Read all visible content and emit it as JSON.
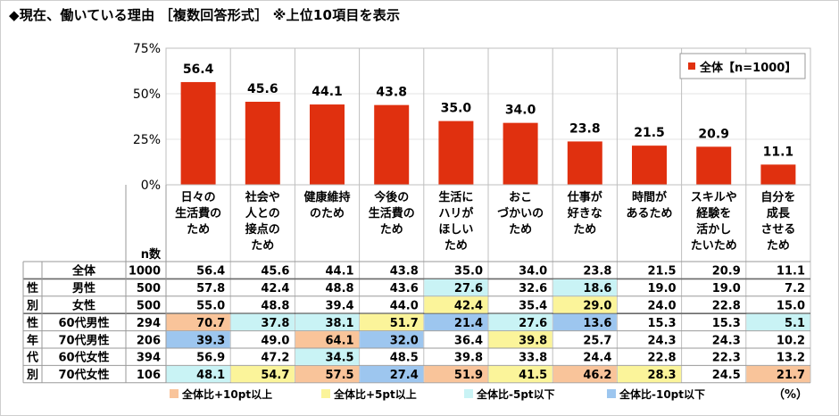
{
  "title": "◆現在、働いている理由 ［複数回答形式］ ※上位10項目を表示",
  "chart_data": {
    "type": "bar",
    "categories": [
      "日々の\n生活費の\nため",
      "社会や\n人との\n接点の\nため",
      "健康維持\nのため",
      "今後の\n生活費の\nため",
      "生活に\nハリが\nほしい\nため",
      "おこ\nづかいの\nため",
      "仕事が\n好きな\nため",
      "時間が\nあるため",
      "スキルや\n経験を\n活かし\nたいため",
      "自分を\n成長\nさせる\nため"
    ],
    "series": [
      {
        "name": "全体【n=1000】",
        "values": [
          56.4,
          45.6,
          44.1,
          43.8,
          35.0,
          34.0,
          23.8,
          21.5,
          20.9,
          11.1
        ]
      }
    ],
    "yticks": [
      "0%",
      "25%",
      "50%",
      "75%"
    ],
    "ylim": [
      0,
      75
    ],
    "bar_color": "#e0300f",
    "legend_position": "top-right"
  },
  "table": {
    "n_header": "n数",
    "unit": "（%）",
    "rows": [
      {
        "group": "",
        "label": "全体",
        "n": "1000",
        "values": [
          "56.4",
          "45.6",
          "44.1",
          "43.8",
          "35.0",
          "34.0",
          "23.8",
          "21.5",
          "20.9",
          "11.1"
        ],
        "hl": [
          "",
          "",
          "",
          "",
          "",
          "",
          "",
          "",
          "",
          ""
        ]
      },
      {
        "group": "性",
        "label": "男性",
        "n": "500",
        "values": [
          "57.8",
          "42.4",
          "48.8",
          "43.6",
          "27.6",
          "32.6",
          "18.6",
          "19.0",
          "19.0",
          "7.2"
        ],
        "hl": [
          "",
          "",
          "",
          "",
          "c",
          "",
          "c",
          "",
          "",
          ""
        ]
      },
      {
        "group": "別",
        "label": "女性",
        "n": "500",
        "values": [
          "55.0",
          "48.8",
          "39.4",
          "44.0",
          "42.4",
          "35.4",
          "29.0",
          "24.0",
          "22.8",
          "15.0"
        ],
        "hl": [
          "",
          "",
          "",
          "",
          "y",
          "",
          "y",
          "",
          "",
          ""
        ]
      },
      {
        "group": "性",
        "label": "60代男性",
        "n": "294",
        "values": [
          "70.7",
          "37.8",
          "38.1",
          "51.7",
          "21.4",
          "27.6",
          "13.6",
          "15.3",
          "15.3",
          "5.1"
        ],
        "hl": [
          "o",
          "c",
          "c",
          "y",
          "b",
          "c",
          "b",
          "",
          "",
          "c"
        ]
      },
      {
        "group": "年",
        "label": "70代男性",
        "n": "206",
        "values": [
          "39.3",
          "49.0",
          "64.1",
          "32.0",
          "36.4",
          "39.8",
          "25.7",
          "24.3",
          "24.3",
          "10.2"
        ],
        "hl": [
          "b",
          "",
          "o",
          "b",
          "",
          "y",
          "",
          "",
          "",
          ""
        ]
      },
      {
        "group": "代",
        "label": "60代女性",
        "n": "394",
        "values": [
          "56.9",
          "47.2",
          "34.5",
          "48.5",
          "39.8",
          "33.8",
          "24.4",
          "22.8",
          "22.3",
          "13.2"
        ],
        "hl": [
          "",
          "",
          "c",
          "",
          "",
          "",
          "",
          "",
          "",
          ""
        ]
      },
      {
        "group": "別",
        "label": "70代女性",
        "n": "106",
        "values": [
          "48.1",
          "54.7",
          "57.5",
          "27.4",
          "51.9",
          "41.5",
          "46.2",
          "28.3",
          "24.5",
          "21.7"
        ],
        "hl": [
          "c",
          "y",
          "o",
          "b",
          "o",
          "y",
          "o",
          "y",
          "",
          "o"
        ]
      }
    ]
  },
  "legend2": [
    {
      "key": "o",
      "label": "全体比+10pt以上",
      "color": "#f9c49a"
    },
    {
      "key": "y",
      "label": "全体比+5pt以上",
      "color": "#fbf49a"
    },
    {
      "key": "c",
      "label": "全体比-5pt以下",
      "color": "#c9f3f5"
    },
    {
      "key": "b",
      "label": "全体比-10pt以下",
      "color": "#9dc6ef"
    }
  ]
}
